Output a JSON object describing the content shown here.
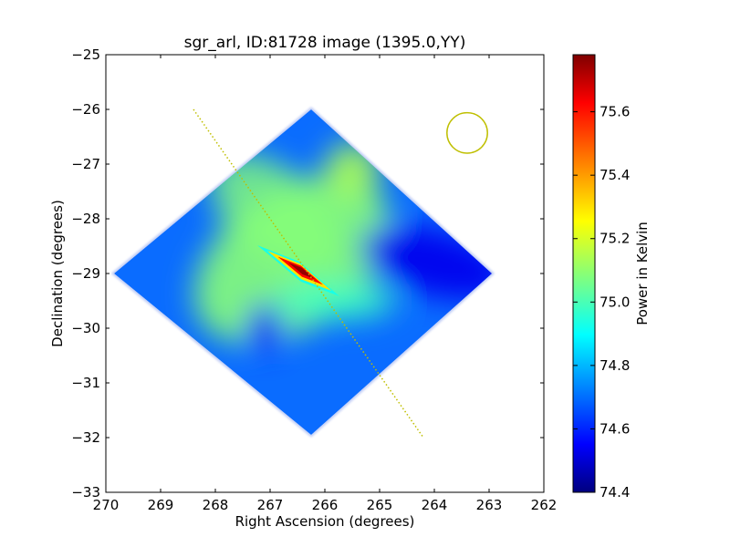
{
  "chart_data": {
    "type": "heatmap",
    "title": "sgr_arl, ID:81728 image (1395.0,YY)",
    "xlabel": "Right Ascension (degrees)",
    "ylabel": "Declination (degrees)",
    "xlim": [
      270,
      262
    ],
    "ylim": [
      -33,
      -25
    ],
    "x_ticks": [
      270,
      269,
      268,
      267,
      266,
      265,
      264,
      263,
      262
    ],
    "y_ticks": [
      -33,
      -32,
      -31,
      -30,
      -29,
      -28,
      -27,
      -26,
      -25
    ],
    "grid": false,
    "colorbar": {
      "label": "Power in Kelvin",
      "range": [
        74.4,
        75.78
      ],
      "ticks": [
        "74.4",
        "74.6",
        "74.8",
        "75.0",
        "75.2",
        "75.4",
        "75.6"
      ],
      "colormap": "jet"
    },
    "footprint": {
      "shape": "diamond",
      "vertices": [
        [
          266.25,
          -26.0
        ],
        [
          262.95,
          -29.0
        ],
        [
          266.25,
          -31.95
        ],
        [
          269.85,
          -29.0
        ]
      ]
    },
    "features": [
      {
        "name": "peak",
        "ra": 266.4,
        "dec": -28.95,
        "value": 75.75
      },
      {
        "name": "warm-lobe-nw",
        "ra": 266.6,
        "dec": -28.4,
        "value": 75.1
      },
      {
        "name": "warm-lobe-se",
        "ra": 265.8,
        "dec": -29.5,
        "value": 75.0
      },
      {
        "name": "warm-spot-n",
        "ra": 265.5,
        "dec": -27.1,
        "value": 75.15
      },
      {
        "name": "cold-lobe-e",
        "ra": 264.0,
        "dec": -28.8,
        "value": 74.55
      },
      {
        "name": "cold-spot-s",
        "ra": 267.1,
        "dec": -30.0,
        "value": 74.6
      }
    ],
    "overlays": {
      "galactic_plane_line": {
        "color": "#bfbf00",
        "style": "dotted",
        "from": [
          268.4,
          -26.0
        ],
        "to": [
          264.2,
          -32.0
        ]
      },
      "beam_circle": {
        "color": "#bfbf00",
        "center": [
          263.4,
          -26.43
        ],
        "radius_deg": 0.37
      }
    }
  }
}
